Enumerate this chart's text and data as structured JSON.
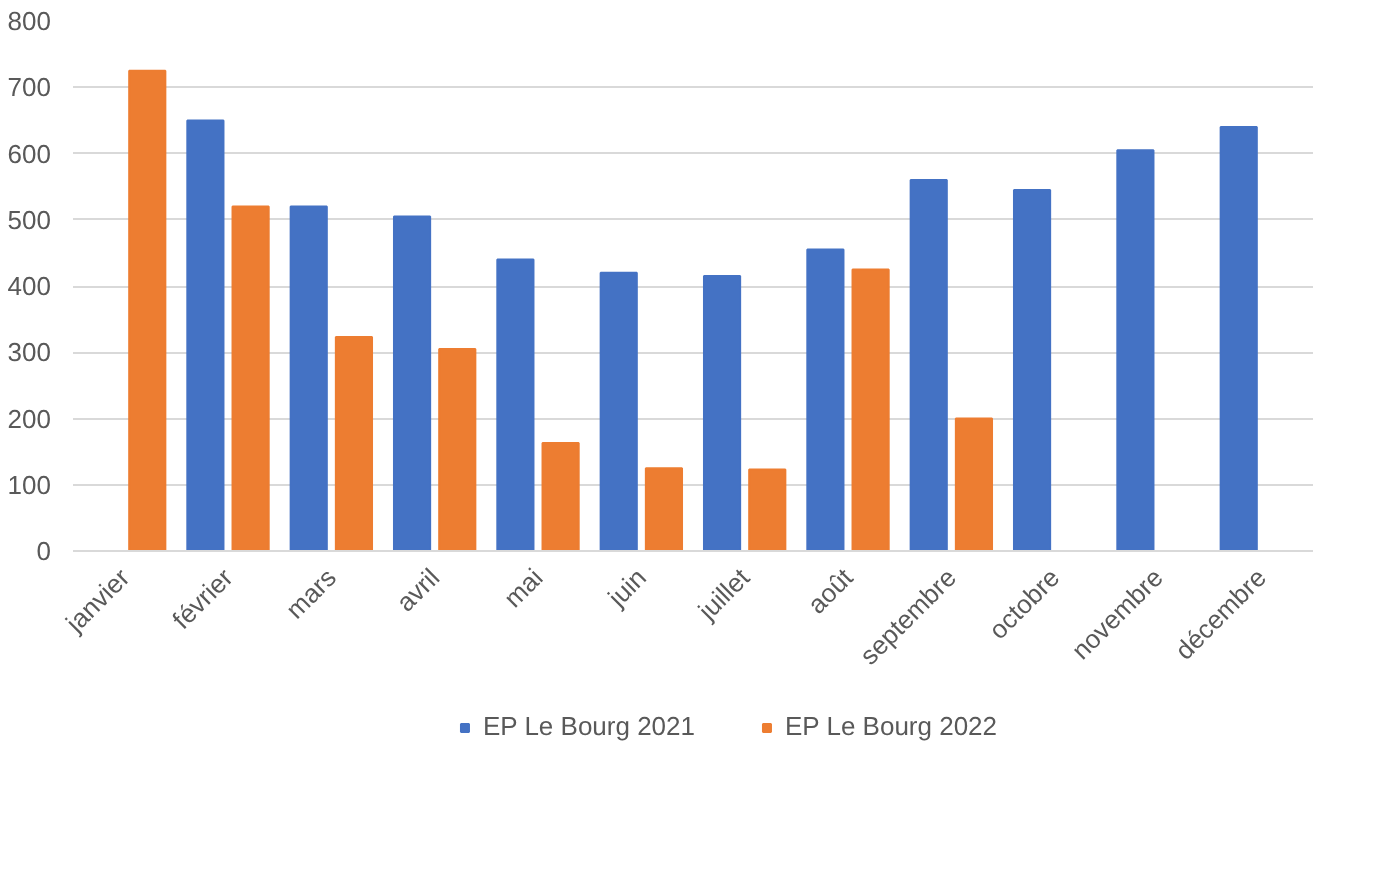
{
  "chart_data": {
    "type": "bar",
    "categories": [
      "janvier",
      "février",
      "mars",
      "avril",
      "mai",
      "juin",
      "juillet",
      "août",
      "septembre",
      "octobre",
      "novembre",
      "décembre"
    ],
    "series": [
      {
        "name": "EP Le Bourg 2021",
        "color": "#4472c4",
        "values": [
          null,
          650,
          520,
          505,
          440,
          420,
          415,
          455,
          560,
          545,
          605,
          640
        ]
      },
      {
        "name": "EP Le Bourg 2022",
        "color": "#ed7d31",
        "values": [
          725,
          520,
          323,
          305,
          163,
          125,
          123,
          425,
          200,
          null,
          null,
          null
        ]
      }
    ],
    "ylim": [
      0,
      800
    ],
    "yticks": [
      0,
      100,
      200,
      300,
      400,
      500,
      600,
      700,
      800
    ],
    "grid": "y",
    "legend": "bottom"
  }
}
